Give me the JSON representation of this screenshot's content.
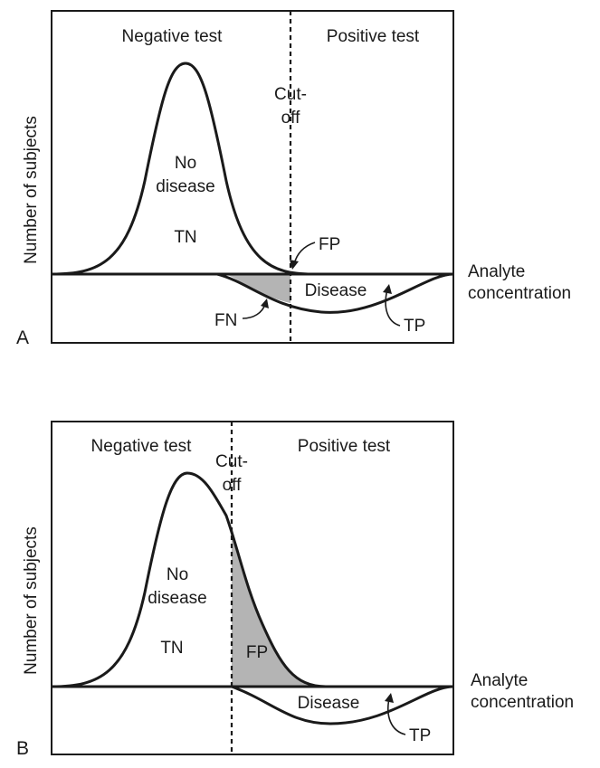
{
  "panels": [
    {
      "letter": "A",
      "header_left": "Negative test",
      "header_right": "Positive test",
      "cutoff_line1": "Cut-",
      "cutoff_line2": "off",
      "y_label": "Number of subjects",
      "x_label_line1": "Analyte",
      "x_label_line2": "concentration",
      "no_disease_line1": "No",
      "no_disease_line2": "disease",
      "tn": "TN",
      "disease": "Disease",
      "fp": "FP",
      "fn": "FN",
      "tp": "TP"
    },
    {
      "letter": "B",
      "header_left": "Negative test",
      "header_right": "Positive test",
      "cutoff_line1": "Cut-",
      "cutoff_line2": "off",
      "y_label": "Number of subjects",
      "x_label_line1": "Analyte",
      "x_label_line2": "concentration",
      "no_disease_line1": "No",
      "no_disease_line2": "disease",
      "tn": "TN",
      "disease": "Disease",
      "fp": "FP",
      "tp": "TP"
    }
  ],
  "colors": {
    "ink": "#1a1a1a",
    "shade": "#b4b4b4"
  }
}
